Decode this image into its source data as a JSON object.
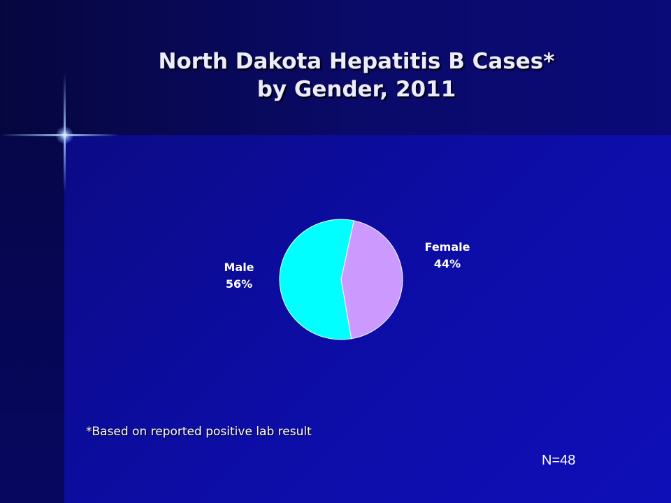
{
  "title": {
    "line1": "North Dakota Hepatitis B Cases*",
    "line2": "by Gender, 2011"
  },
  "chart_data": {
    "type": "pie",
    "title": "North Dakota Hepatitis B Cases* by Gender, 2011",
    "slices": [
      {
        "name": "Female",
        "label": "44%",
        "value": 44,
        "color": "#cc99ff"
      },
      {
        "name": "Male",
        "label": "56%",
        "value": 56,
        "color": "#00ffff"
      }
    ],
    "legend": "none"
  },
  "footnote": "*Based on reported positive lab result",
  "n_label": "N=48",
  "colors": {
    "background": "#0a0a9a",
    "female": "#cc99ff",
    "male": "#00ffff",
    "text": "#ffffff"
  }
}
